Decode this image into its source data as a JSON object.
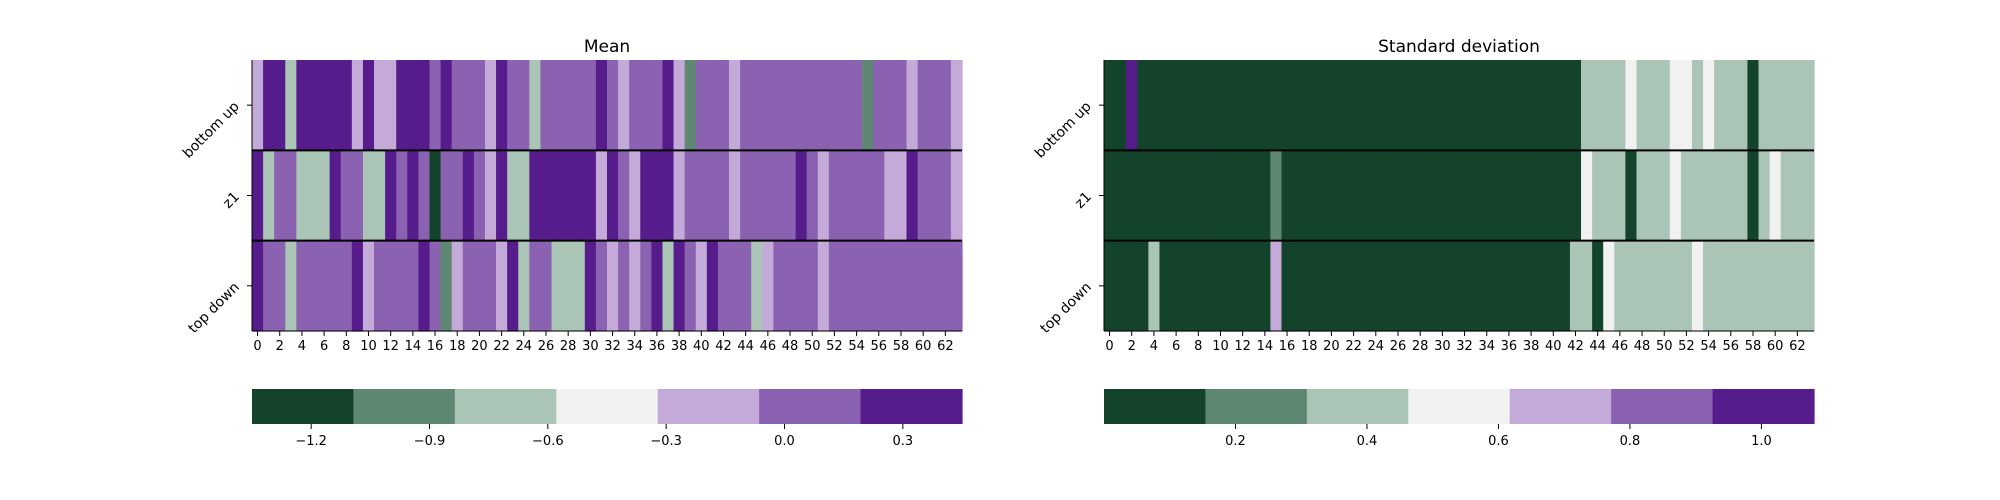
{
  "chart_data": [
    {
      "type": "heatmap",
      "title": "Mean",
      "rows": [
        "bottom up",
        "z1",
        "top down"
      ],
      "x_tick_labels": [
        "0",
        "2",
        "4",
        "6",
        "8",
        "10",
        "12",
        "14",
        "16",
        "18",
        "20",
        "22",
        "24",
        "26",
        "28",
        "30",
        "32",
        "34",
        "36",
        "38",
        "40",
        "42",
        "44",
        "46",
        "48",
        "50",
        "52",
        "54",
        "56",
        "58",
        "60",
        "62"
      ],
      "num_columns": 64,
      "values": [
        [
          -0.3,
          0.3,
          0.3,
          -0.6,
          0.3,
          0.3,
          0.3,
          0.3,
          0.3,
          -0.3,
          0.3,
          -0.3,
          -0.3,
          0.3,
          0.3,
          0.3,
          0.0,
          0.3,
          0.0,
          0.0,
          0.0,
          -0.3,
          0.3,
          0.0,
          0.0,
          -0.6,
          0.0,
          0.0,
          0.0,
          0.0,
          0.0,
          0.3,
          0.0,
          -0.3,
          0.0,
          0.0,
          0.0,
          0.3,
          -0.3,
          -0.9,
          0.0,
          0.0,
          0.0,
          -0.3,
          0.0,
          0.0,
          0.0,
          0.0,
          0.0,
          0.0,
          0.0,
          0.0,
          0.0,
          0.0,
          0.0,
          -0.9,
          0.0,
          0.0,
          0.0,
          -0.3,
          0.0,
          0.0,
          0.0,
          -0.3
        ],
        [
          0.3,
          -0.6,
          0.0,
          0.0,
          -0.6,
          -0.6,
          -0.6,
          0.3,
          0.0,
          0.0,
          -0.6,
          -0.6,
          0.3,
          0.0,
          0.3,
          0.0,
          -1.2,
          0.0,
          0.0,
          0.3,
          0.0,
          -0.3,
          0.3,
          -0.6,
          -0.6,
          0.3,
          0.3,
          0.3,
          0.3,
          0.3,
          0.3,
          -0.3,
          0.3,
          0.0,
          -0.3,
          0.3,
          0.3,
          0.3,
          -0.3,
          0.0,
          0.0,
          0.0,
          0.0,
          -0.3,
          0.0,
          0.0,
          0.0,
          0.0,
          0.0,
          0.3,
          0.0,
          -0.3,
          0.0,
          0.0,
          0.0,
          0.0,
          0.0,
          -0.3,
          -0.3,
          0.3,
          0.0,
          0.0,
          0.0,
          -0.3
        ],
        [
          0.3,
          0.0,
          0.0,
          -0.6,
          0.0,
          0.0,
          0.0,
          0.0,
          0.0,
          0.3,
          -0.3,
          0.0,
          0.0,
          0.0,
          0.0,
          0.3,
          0.0,
          -0.9,
          -0.3,
          0.0,
          0.0,
          0.0,
          -0.3,
          0.3,
          -0.6,
          0.0,
          0.0,
          -0.6,
          -0.6,
          -0.6,
          0.3,
          0.0,
          -0.3,
          0.0,
          -0.3,
          0.0,
          0.3,
          -0.6,
          0.3,
          0.0,
          -0.3,
          0.3,
          0.0,
          0.0,
          0.0,
          -0.6,
          -0.3,
          0.0,
          0.0,
          0.0,
          0.0,
          -0.3,
          0.0,
          0.0,
          0.0,
          0.0,
          0.0,
          0.0,
          0.0,
          0.0,
          0.0,
          0.0,
          0.0,
          0.0
        ]
      ],
      "colorbar": {
        "ticks": [
          -1.2,
          -0.9,
          -0.6,
          -0.3,
          0.0,
          0.3
        ],
        "tick_labels": [
          "−1.2",
          "−0.9",
          "−0.6",
          "−0.3",
          "0.0",
          "0.3"
        ],
        "range": [
          -1.35,
          0.45
        ],
        "colors": [
          "#14432c",
          "#5f8872",
          "#aac4b6",
          "#f1f1f1",
          "#c3aad8",
          "#8b62b1",
          "#561c8b"
        ]
      }
    },
    {
      "type": "heatmap",
      "title": "Standard deviation",
      "rows": [
        "bottom up",
        "z1",
        "top down"
      ],
      "x_tick_labels": [
        "0",
        "2",
        "4",
        "6",
        "8",
        "10",
        "12",
        "14",
        "16",
        "18",
        "20",
        "22",
        "24",
        "26",
        "28",
        "30",
        "32",
        "34",
        "36",
        "38",
        "40",
        "42",
        "44",
        "46",
        "48",
        "50",
        "52",
        "54",
        "56",
        "58",
        "60",
        "62"
      ],
      "num_columns": 64,
      "values": [
        [
          0.05,
          0.05,
          1.0,
          0.05,
          0.05,
          0.05,
          0.05,
          0.05,
          0.05,
          0.05,
          0.05,
          0.05,
          0.05,
          0.05,
          0.05,
          0.05,
          0.05,
          0.05,
          0.05,
          0.05,
          0.05,
          0.05,
          0.05,
          0.05,
          0.05,
          0.05,
          0.05,
          0.05,
          0.05,
          0.05,
          0.05,
          0.05,
          0.05,
          0.05,
          0.05,
          0.05,
          0.05,
          0.05,
          0.05,
          0.05,
          0.05,
          0.05,
          0.05,
          0.4,
          0.4,
          0.4,
          0.4,
          0.6,
          0.4,
          0.4,
          0.4,
          0.6,
          0.6,
          0.4,
          0.6,
          0.4,
          0.4,
          0.4,
          0.05,
          0.4,
          0.4,
          0.4,
          0.4,
          0.4
        ],
        [
          0.05,
          0.05,
          0.05,
          0.05,
          0.05,
          0.05,
          0.05,
          0.05,
          0.05,
          0.05,
          0.05,
          0.05,
          0.05,
          0.05,
          0.05,
          0.25,
          0.05,
          0.05,
          0.05,
          0.05,
          0.05,
          0.05,
          0.05,
          0.05,
          0.05,
          0.05,
          0.05,
          0.05,
          0.05,
          0.05,
          0.05,
          0.05,
          0.05,
          0.05,
          0.05,
          0.05,
          0.05,
          0.05,
          0.05,
          0.05,
          0.05,
          0.05,
          0.05,
          0.6,
          0.4,
          0.4,
          0.4,
          0.05,
          0.4,
          0.4,
          0.4,
          0.6,
          0.4,
          0.4,
          0.4,
          0.4,
          0.4,
          0.4,
          0.05,
          0.4,
          0.6,
          0.4,
          0.4,
          0.4
        ],
        [
          0.05,
          0.05,
          0.05,
          0.05,
          0.4,
          0.05,
          0.05,
          0.05,
          0.05,
          0.05,
          0.05,
          0.05,
          0.05,
          0.05,
          0.05,
          0.7,
          0.05,
          0.05,
          0.05,
          0.05,
          0.05,
          0.05,
          0.05,
          0.05,
          0.05,
          0.05,
          0.05,
          0.05,
          0.05,
          0.05,
          0.05,
          0.05,
          0.05,
          0.05,
          0.05,
          0.05,
          0.05,
          0.05,
          0.05,
          0.05,
          0.05,
          0.05,
          0.4,
          0.4,
          0.05,
          0.6,
          0.4,
          0.4,
          0.4,
          0.4,
          0.4,
          0.4,
          0.4,
          0.6,
          0.4,
          0.4,
          0.4,
          0.4,
          0.4,
          0.4,
          0.4,
          0.4,
          0.4,
          0.4
        ]
      ],
      "colorbar": {
        "ticks": [
          0.2,
          0.4,
          0.6,
          0.8,
          1.0
        ],
        "tick_labels": [
          "0.2",
          "0.4",
          "0.6",
          "0.8",
          "1.0"
        ],
        "range": [
          0.0,
          1.08
        ],
        "colors": [
          "#14432c",
          "#5f8872",
          "#aac4b6",
          "#f1f1f1",
          "#c3aad8",
          "#8b62b1",
          "#561c8b"
        ]
      }
    }
  ]
}
